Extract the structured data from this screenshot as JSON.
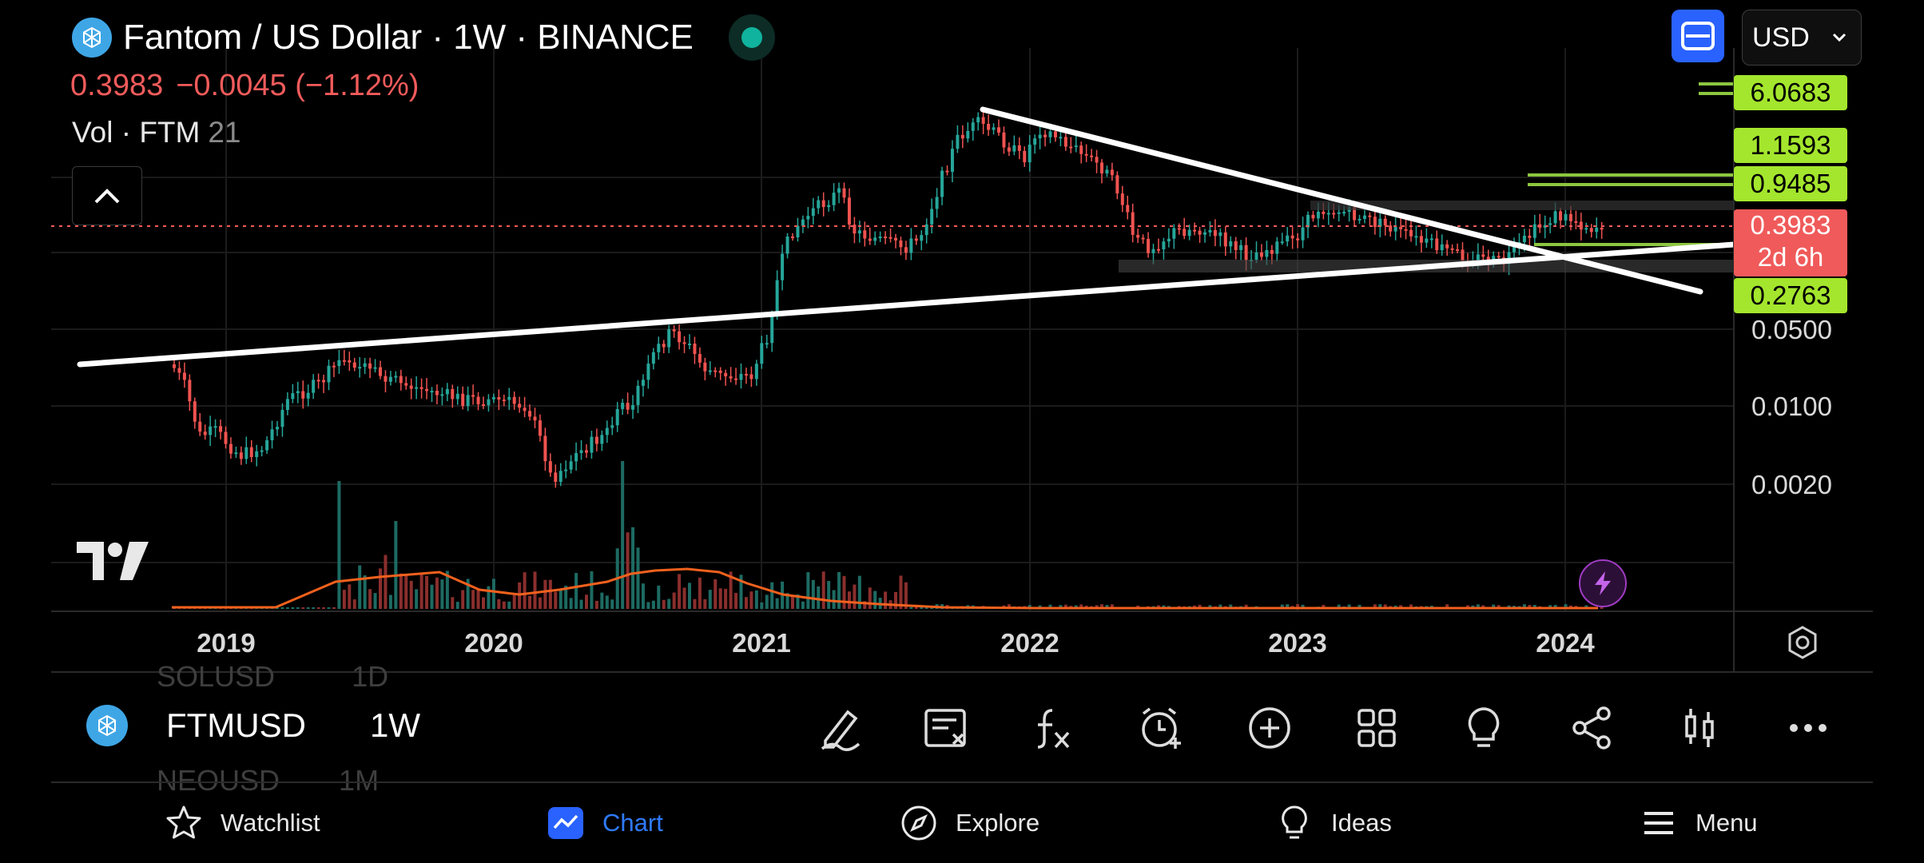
{
  "header": {
    "title": "Fantom / US Dollar · 1W · BINANCE",
    "price": "0.3983",
    "change": "−0.0045 (−1.12%)",
    "vol_label": "Vol · FTM",
    "vol_value": "21",
    "currency": "USD"
  },
  "price_axis": {
    "labels_green": [
      "6.0683",
      "1.1593",
      "0.9485",
      "0.2763"
    ],
    "current_price": "0.3983",
    "countdown": "2d 6h",
    "ticks": [
      "0.0500",
      "0.0100",
      "0.0020"
    ]
  },
  "time_axis": {
    "years": [
      "2019",
      "2020",
      "2021",
      "2022",
      "2023",
      "2024"
    ]
  },
  "symbol_bar": {
    "prev_symbol": "SOLUSD",
    "prev_interval": "1D",
    "symbol": "FTMUSD",
    "interval": "1W",
    "next_symbol": "NEOUSD",
    "next_interval": "1M"
  },
  "toolbar": [
    "draw-icon",
    "object-tree-icon",
    "indicators-icon",
    "alert-icon",
    "add-icon",
    "layouts-icon",
    "ideas-icon",
    "share-icon",
    "chart-type-icon",
    "more-icon"
  ],
  "nav": {
    "watchlist": "Watchlist",
    "chart": "Chart",
    "explore": "Explore",
    "ideas": "Ideas",
    "menu": "Menu"
  },
  "colors": {
    "up": "#26a69a",
    "down": "#ef5350",
    "accent": "#2962ff",
    "level": "#a4e62d",
    "current": "#f05a5a"
  }
}
